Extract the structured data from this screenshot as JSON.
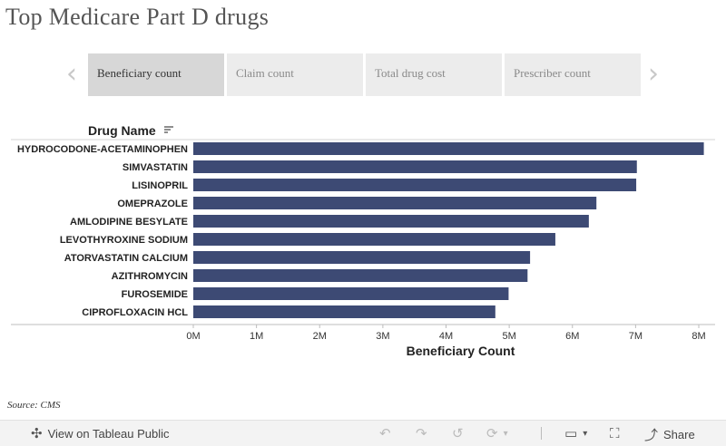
{
  "title": "Top Medicare Part D drugs",
  "tabs": [
    {
      "label": "Beneficiary count",
      "active": true
    },
    {
      "label": "Claim count",
      "active": false
    },
    {
      "label": "Total drug cost",
      "active": false
    },
    {
      "label": "Prescriber count",
      "active": false
    }
  ],
  "icons": {
    "prev": "chevron-left-icon",
    "next": "chevron-right-icon",
    "sort": "sort-icon"
  },
  "colors": {
    "bar": "#3d4a74",
    "active_tab": "#d7d7d7",
    "tab": "#ececec"
  },
  "chart_data": {
    "type": "bar",
    "orientation": "horizontal",
    "title": "",
    "row_header": "Drug Name",
    "xlabel": "Beneficiary Count",
    "categories": [
      "HYDROCODONE-ACETAMINOPHEN",
      "SIMVASTATIN",
      "LISINOPRIL",
      "OMEPRAZOLE",
      "AMLODIPINE BESYLATE",
      "LEVOTHYROXINE SODIUM",
      "ATORVASTATIN CALCIUM",
      "AZITHROMYCIN",
      "FUROSEMIDE",
      "CIPROFLOXACIN HCL"
    ],
    "values": [
      8080000,
      7020000,
      7010000,
      6380000,
      6260000,
      5730000,
      5330000,
      5290000,
      4990000,
      4780000
    ],
    "xlim": [
      0,
      8000000
    ],
    "xticks": [
      0,
      1000000,
      2000000,
      3000000,
      4000000,
      5000000,
      6000000,
      7000000,
      8000000
    ],
    "xtick_labels": [
      "0M",
      "1M",
      "2M",
      "3M",
      "4M",
      "5M",
      "6M",
      "7M",
      "8M"
    ],
    "grid": false,
    "legend": "none"
  },
  "source": "Source: CMS",
  "toolbar": {
    "view_label": "View on Tableau Public",
    "share_label": "Share"
  }
}
